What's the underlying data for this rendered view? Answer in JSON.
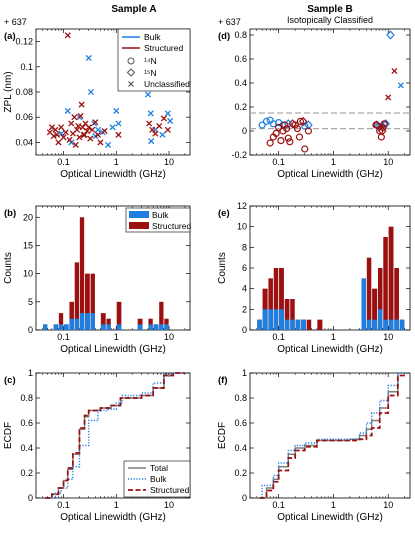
{
  "figure": {
    "col_titles": [
      "Sample A",
      "Sample B"
    ],
    "subtitle_b": "Isotopically Classified",
    "legend_a": {
      "bulk": "Bulk",
      "structured": "Structured",
      "n14": "¹⁴N",
      "n15": "¹⁵N",
      "unclassified": "Unclassified"
    },
    "legend_hist": {
      "bulk": "Bulk",
      "structured": "Structured"
    },
    "legend_ecdf": {
      "total": "Total",
      "bulk": "Bulk",
      "structured": "Structured"
    }
  },
  "colors": {
    "bulk": "#1f7fe0",
    "structured": "#9b1111",
    "total": "#7f7f7f",
    "gray_dash": "#aaaaaa"
  },
  "chart_data": [
    {
      "panel": "(a)",
      "type": "scatter",
      "xlabel": "Optical Linewidth (GHz)",
      "ylabel": "ZPL (nm)",
      "y_offset_label": "+ 637",
      "xscale": "log",
      "xlim": [
        0.03,
        25
      ],
      "ylim": [
        0.03,
        0.13
      ],
      "xticks": [
        0.1,
        1,
        10
      ],
      "xticklabels": [
        "0.1",
        "1",
        "10"
      ],
      "yticks": [
        0.04,
        0.06,
        0.08,
        0.1,
        0.12
      ],
      "yticklabels": [
        "0.04",
        "0.06",
        "0.08",
        "0.1",
        "0.12"
      ],
      "legend_position": "top-right",
      "series": [
        {
          "name": "Bulk",
          "marker": "x",
          "color": "#1f7fe0",
          "x": [
            0.09,
            0.12,
            0.14,
            0.2,
            0.3,
            0.33,
            0.38,
            0.4,
            0.45,
            0.55,
            0.7,
            0.85,
            1.0,
            1.1,
            4.0,
            4.5,
            4.6,
            5.5,
            7.5,
            9.5,
            10.5
          ],
          "y": [
            0.047,
            0.065,
            0.04,
            0.06,
            0.107,
            0.08,
            0.055,
            0.045,
            0.05,
            0.048,
            0.038,
            0.052,
            0.065,
            0.055,
            0.078,
            0.063,
            0.041,
            0.05,
            0.046,
            0.063,
            0.057
          ]
        },
        {
          "name": "Structured",
          "marker": "x",
          "color": "#9b1111",
          "x": [
            0.055,
            0.06,
            0.065,
            0.07,
            0.075,
            0.08,
            0.09,
            0.1,
            0.11,
            0.12,
            0.13,
            0.14,
            0.15,
            0.16,
            0.18,
            0.2,
            0.22,
            0.24,
            0.26,
            0.28,
            0.3,
            0.32,
            0.35,
            0.4,
            0.45,
            0.5,
            0.6,
            1.1,
            4.2,
            4.8,
            5.5,
            6.5,
            8.0,
            9.5,
            0.17,
            0.19,
            0.21,
            0.23,
            0.25
          ],
          "y": [
            0.048,
            0.052,
            0.045,
            0.05,
            0.046,
            0.04,
            0.052,
            0.044,
            0.048,
            0.125,
            0.042,
            0.055,
            0.047,
            0.06,
            0.05,
            0.044,
            0.07,
            0.046,
            0.055,
            0.049,
            0.052,
            0.043,
            0.05,
            0.056,
            0.046,
            0.04,
            0.049,
            0.046,
            0.055,
            0.05,
            0.047,
            0.053,
            0.059,
            0.05,
            0.038,
            0.053,
            0.061,
            0.052,
            0.046
          ]
        }
      ]
    },
    {
      "panel": "(b)",
      "type": "bar",
      "xlabel": "Optical Linewidth (GHz)",
      "ylabel": "Counts",
      "xscale": "log",
      "xlim": [
        0.03,
        25
      ],
      "ylim": [
        0,
        22
      ],
      "xticks": [
        0.1,
        1,
        10
      ],
      "xticklabels": [
        "0.1",
        "1",
        "10"
      ],
      "yticks": [
        0,
        5,
        10,
        15,
        20
      ],
      "yticklabels": [
        "0",
        "5",
        "10",
        "15",
        "20"
      ],
      "legend_position": "top-right",
      "bin_edges": [
        0.04,
        0.05,
        0.064,
        0.08,
        0.1,
        0.127,
        0.16,
        0.2,
        0.25,
        0.32,
        0.4,
        0.5,
        0.64,
        0.8,
        1.0,
        1.27,
        1.6,
        2.0,
        2.5,
        3.2,
        4.0,
        5.0,
        6.4,
        8.0,
        10.0,
        12.7,
        16.0
      ],
      "series": [
        {
          "name": "Bulk",
          "color": "#1f7fe0",
          "values": [
            1,
            0,
            1,
            1,
            1,
            2,
            2,
            3,
            3,
            3,
            0,
            1,
            1,
            0,
            1,
            0,
            0,
            0,
            1,
            0,
            1,
            1,
            1,
            1,
            0,
            0
          ]
        },
        {
          "name": "Structured",
          "color": "#9b1111",
          "values": [
            1,
            0,
            1,
            3,
            1,
            5,
            12,
            20,
            10,
            10,
            0,
            3,
            2,
            0,
            5,
            0,
            0,
            0,
            2,
            0,
            2,
            1,
            5,
            2,
            0,
            0
          ]
        }
      ]
    },
    {
      "panel": "(c)",
      "type": "line",
      "xlabel": "Optical Linewidth (GHz)",
      "ylabel": "ECDF",
      "xscale": "log",
      "xlim": [
        0.03,
        25
      ],
      "ylim": [
        0,
        1
      ],
      "xticks": [
        0.1,
        1,
        10
      ],
      "xticklabels": [
        "0.1",
        "1",
        "10"
      ],
      "yticks": [
        0,
        0.2,
        0.4,
        0.6,
        0.8,
        1
      ],
      "yticklabels": [
        "0",
        "0.2",
        "0.4",
        "0.6",
        "0.8",
        "1"
      ],
      "legend_position": "bottom-right",
      "series": [
        {
          "name": "Total",
          "color": "#7f7f7f",
          "style": "solid",
          "x": [
            0.045,
            0.06,
            0.08,
            0.1,
            0.12,
            0.15,
            0.2,
            0.25,
            0.3,
            0.5,
            0.8,
            1.2,
            3,
            5,
            8,
            12,
            20
          ],
          "y": [
            0,
            0.03,
            0.08,
            0.14,
            0.23,
            0.35,
            0.55,
            0.65,
            0.7,
            0.72,
            0.74,
            0.8,
            0.82,
            0.88,
            0.98,
            1.0,
            1.0
          ]
        },
        {
          "name": "Bulk",
          "color": "#1f7fe0",
          "style": "dotted",
          "x": [
            0.045,
            0.07,
            0.09,
            0.12,
            0.15,
            0.2,
            0.3,
            0.45,
            0.7,
            1.0,
            1.3,
            3,
            5,
            8,
            12,
            20
          ],
          "y": [
            0,
            0.04,
            0.08,
            0.15,
            0.25,
            0.42,
            0.62,
            0.7,
            0.71,
            0.76,
            0.82,
            0.84,
            0.92,
            0.99,
            1.0,
            1.0
          ]
        },
        {
          "name": "Structured",
          "color": "#9b1111",
          "style": "dashed",
          "x": [
            0.045,
            0.06,
            0.08,
            0.1,
            0.12,
            0.15,
            0.2,
            0.25,
            0.3,
            0.5,
            0.8,
            1.2,
            3,
            5,
            8,
            12,
            20
          ],
          "y": [
            0,
            0.03,
            0.08,
            0.14,
            0.24,
            0.36,
            0.56,
            0.66,
            0.7,
            0.72,
            0.74,
            0.8,
            0.82,
            0.88,
            0.98,
            1.0,
            1.0
          ]
        }
      ]
    },
    {
      "panel": "(d)",
      "type": "scatter",
      "xlabel": "Optical Linewidth (GHz)",
      "ylabel": "",
      "xscale": "log",
      "xlim": [
        0.03,
        25
      ],
      "ylim": [
        -0.2,
        0.85
      ],
      "xticks": [
        0.1,
        1,
        10
      ],
      "xticklabels": [
        "0.1",
        "1",
        "10"
      ],
      "yticks": [
        -0.2,
        0,
        0.2,
        0.4,
        0.6,
        0.8
      ],
      "yticklabels": [
        "-0.2",
        "0",
        "0.2",
        "0.4",
        "0.6",
        "0.8"
      ],
      "reference_lines_y": [
        0.15,
        0.02
      ],
      "series": [
        {
          "name": "¹⁴N bulk",
          "marker": "circle",
          "color": "#1f7fe0",
          "x": [
            0.05,
            0.06,
            0.07,
            0.08,
            0.1,
            0.12,
            0.3,
            6.0,
            7.0,
            8.5
          ],
          "y": [
            0.05,
            0.08,
            0.09,
            0.06,
            0.07,
            0.05,
            0.04,
            0.05,
            0.04,
            0.05
          ]
        },
        {
          "name": "¹⁵N bulk",
          "marker": "diamond",
          "color": "#1f7fe0",
          "x": [
            0.15,
            0.35,
            6.5,
            9.0,
            11.0
          ],
          "y": [
            0.06,
            0.05,
            0.04,
            0.06,
            0.8
          ]
        },
        {
          "name": "¹⁴N structured",
          "marker": "circle",
          "color": "#9b1111",
          "x": [
            0.07,
            0.08,
            0.09,
            0.1,
            0.11,
            0.12,
            0.13,
            0.14,
            0.15,
            0.16,
            0.2,
            0.22,
            0.24,
            0.25,
            0.3,
            0.35,
            6.0,
            7.0,
            7.5,
            8.0,
            8.5
          ],
          "y": [
            -0.1,
            -0.05,
            -0.02,
            0.03,
            -0.08,
            0.0,
            0.05,
            0.02,
            -0.06,
            -0.09,
            0.05,
            0.02,
            -0.05,
            0.08,
            -0.15,
            0.0,
            0.05,
            0.0,
            -0.05,
            0.03,
            0.06
          ]
        },
        {
          "name": "¹⁵N structured",
          "marker": "diamond",
          "color": "#9b1111",
          "x": [
            0.18,
            0.28,
            6.2,
            7.8
          ],
          "y": [
            0.06,
            0.08,
            0.05,
            0.0
          ]
        },
        {
          "name": "Unclassified",
          "marker": "x",
          "color": "#9b1111",
          "x": [
            7.5,
            10.0,
            13.0
          ],
          "y": [
            0.04,
            0.28,
            0.5
          ]
        },
        {
          "name": "Unclassified bulk",
          "marker": "x",
          "color": "#1f7fe0",
          "x": [
            17.0
          ],
          "y": [
            0.38
          ]
        }
      ]
    },
    {
      "panel": "(e)",
      "type": "bar",
      "xlabel": "Optical Linewidth (GHz)",
      "ylabel": "Counts",
      "xscale": "log",
      "xlim": [
        0.03,
        25
      ],
      "ylim": [
        0,
        12
      ],
      "xticks": [
        0.1,
        1,
        10
      ],
      "xticklabels": [
        "0.1",
        "1",
        "10"
      ],
      "yticks": [
        0,
        2,
        4,
        6,
        8,
        10,
        12
      ],
      "yticklabels": [
        "0",
        "2",
        "4",
        "6",
        "8",
        "10",
        "12"
      ],
      "bin_edges": [
        0.04,
        0.05,
        0.064,
        0.08,
        0.1,
        0.127,
        0.16,
        0.2,
        0.25,
        0.32,
        0.4,
        0.5,
        0.64,
        0.8,
        1.0,
        1.27,
        1.6,
        2.0,
        2.5,
        3.2,
        4.0,
        5.0,
        6.4,
        8.0,
        10.0,
        12.7,
        16.0,
        20.0
      ],
      "series": [
        {
          "name": "Bulk",
          "color": "#1f7fe0",
          "values": [
            1,
            2,
            2,
            2,
            2,
            1,
            1,
            1,
            1,
            0,
            0,
            0,
            0,
            0,
            0,
            0,
            0,
            0,
            0,
            5,
            1,
            1,
            2,
            1,
            1,
            1,
            1
          ]
        },
        {
          "name": "Structured",
          "color": "#9b1111",
          "values": [
            1,
            4,
            5,
            6,
            6,
            3,
            3,
            1,
            1,
            1,
            0,
            1,
            0,
            0,
            0,
            0,
            0,
            0,
            0,
            3,
            7,
            4,
            6,
            9,
            10,
            6,
            1
          ]
        }
      ]
    },
    {
      "panel": "(f)",
      "type": "line",
      "xlabel": "Optical Linewidth (GHz)",
      "ylabel": "ECDF",
      "xscale": "log",
      "xlim": [
        0.03,
        25
      ],
      "ylim": [
        0,
        1
      ],
      "xticks": [
        0.1,
        1,
        10
      ],
      "xticklabels": [
        "0.1",
        "1",
        "10"
      ],
      "yticks": [
        0,
        0.2,
        0.4,
        0.6,
        0.8,
        1
      ],
      "yticklabels": [
        "0",
        "0.2",
        "0.4",
        "0.6",
        "0.8",
        "1"
      ],
      "series": [
        {
          "name": "Total",
          "color": "#7f7f7f",
          "style": "solid",
          "x": [
            0.045,
            0.06,
            0.08,
            0.1,
            0.15,
            0.2,
            0.3,
            0.5,
            1.0,
            2.0,
            3.0,
            4.0,
            5.0,
            7.0,
            10.0,
            15.0,
            20.0
          ],
          "y": [
            0,
            0.08,
            0.15,
            0.25,
            0.35,
            0.4,
            0.42,
            0.46,
            0.46,
            0.47,
            0.5,
            0.55,
            0.62,
            0.72,
            0.85,
            1.0,
            1.0
          ]
        },
        {
          "name": "Bulk",
          "color": "#1f7fe0",
          "style": "dotted",
          "x": [
            0.045,
            0.05,
            0.08,
            0.1,
            0.15,
            0.2,
            0.3,
            0.5,
            1.0,
            2.0,
            3.0,
            4.0,
            5.0,
            7.0,
            10.0,
            15.0,
            20.0
          ],
          "y": [
            0,
            0.1,
            0.18,
            0.28,
            0.38,
            0.42,
            0.44,
            0.47,
            0.47,
            0.47,
            0.52,
            0.6,
            0.68,
            0.78,
            0.9,
            1.0,
            1.0
          ]
        },
        {
          "name": "Structured",
          "color": "#9b1111",
          "style": "dashed",
          "x": [
            0.045,
            0.06,
            0.08,
            0.1,
            0.15,
            0.2,
            0.3,
            0.5,
            1.0,
            2.0,
            3.0,
            4.0,
            5.0,
            7.0,
            10.0,
            15.0,
            20.0
          ],
          "y": [
            0,
            0.06,
            0.13,
            0.22,
            0.32,
            0.38,
            0.41,
            0.46,
            0.46,
            0.46,
            0.47,
            0.5,
            0.56,
            0.68,
            0.82,
            0.98,
            1.0
          ]
        }
      ]
    }
  ]
}
